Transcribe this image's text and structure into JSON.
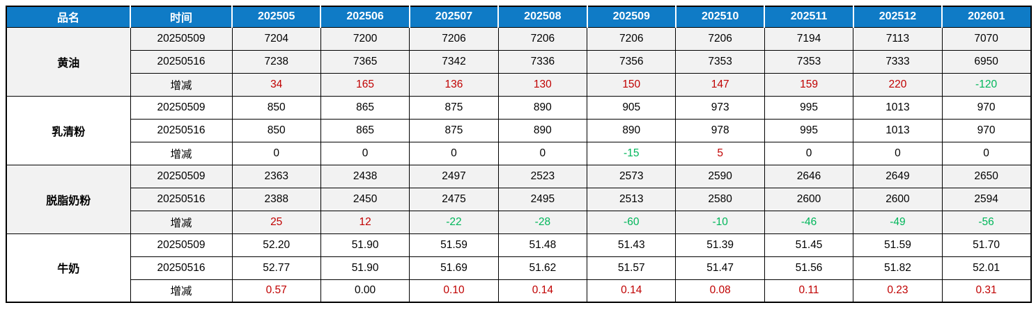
{
  "colors": {
    "header_bg": "#0F7BC6",
    "header_text": "#FFFFFF",
    "positive": "#C00000",
    "negative": "#00B65A",
    "neutral": "#000000",
    "group_shade": "#F2F2F2"
  },
  "table": {
    "header": {
      "product_label": "品名",
      "time_label": "时间",
      "months": [
        "202505",
        "202506",
        "202507",
        "202508",
        "202509",
        "202510",
        "202511",
        "202512",
        "202601"
      ]
    },
    "change_label": "增减",
    "groups": [
      {
        "name": "黄油",
        "rows": [
          {
            "label": "20250509",
            "values": [
              "7204",
              "7200",
              "7206",
              "7206",
              "7206",
              "7206",
              "7194",
              "7113",
              "7070"
            ]
          },
          {
            "label": "20250516",
            "values": [
              "7238",
              "7365",
              "7342",
              "7336",
              "7356",
              "7353",
              "7353",
              "7333",
              "6950"
            ]
          }
        ],
        "change": [
          "34",
          "165",
          "136",
          "130",
          "150",
          "147",
          "159",
          "220",
          "-120"
        ]
      },
      {
        "name": "乳清粉",
        "rows": [
          {
            "label": "20250509",
            "values": [
              "850",
              "865",
              "875",
              "890",
              "905",
              "973",
              "995",
              "1013",
              "970"
            ]
          },
          {
            "label": "20250516",
            "values": [
              "850",
              "865",
              "875",
              "890",
              "890",
              "978",
              "995",
              "1013",
              "970"
            ]
          }
        ],
        "change": [
          "0",
          "0",
          "0",
          "0",
          "-15",
          "5",
          "0",
          "0",
          "0"
        ]
      },
      {
        "name": "脱脂奶粉",
        "rows": [
          {
            "label": "20250509",
            "values": [
              "2363",
              "2438",
              "2497",
              "2523",
              "2573",
              "2590",
              "2646",
              "2649",
              "2650"
            ]
          },
          {
            "label": "20250516",
            "values": [
              "2388",
              "2450",
              "2475",
              "2495",
              "2513",
              "2580",
              "2600",
              "2600",
              "2594"
            ]
          }
        ],
        "change": [
          "25",
          "12",
          "-22",
          "-28",
          "-60",
          "-10",
          "-46",
          "-49",
          "-56"
        ]
      },
      {
        "name": "牛奶",
        "rows": [
          {
            "label": "20250509",
            "values": [
              "52.20",
              "51.90",
              "51.59",
              "51.48",
              "51.43",
              "51.39",
              "51.45",
              "51.59",
              "51.70"
            ]
          },
          {
            "label": "20250516",
            "values": [
              "52.77",
              "51.90",
              "51.69",
              "51.62",
              "51.57",
              "51.47",
              "51.56",
              "51.82",
              "52.01"
            ]
          }
        ],
        "change": [
          "0.57",
          "0.00",
          "0.10",
          "0.14",
          "0.14",
          "0.08",
          "0.11",
          "0.23",
          "0.31"
        ]
      }
    ]
  }
}
